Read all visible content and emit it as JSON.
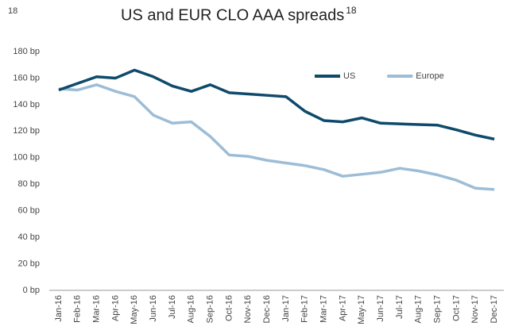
{
  "page_number": "18",
  "chart_data": {
    "type": "line",
    "title": "US and EUR CLO AAA spreads",
    "title_superscript": "18",
    "categories": [
      "Jan-16",
      "Feb-16",
      "Mar-16",
      "Apr-16",
      "May-16",
      "Jun-16",
      "Jul-16",
      "Aug-16",
      "Sep-16",
      "Oct-16",
      "Nov-16",
      "Dec-16",
      "Jan-17",
      "Feb-17",
      "Mar-17",
      "Apr-17",
      "May-17",
      "Jun-17",
      "Jul-17",
      "Aug-17",
      "Sep-17",
      "Oct-17",
      "Nov-17",
      "Dec-17"
    ],
    "series": [
      {
        "name": "US",
        "color": "#0e4a6b",
        "values": [
          151,
          156,
          161,
          160,
          166,
          161,
          154,
          150,
          155,
          149,
          148,
          147,
          146,
          135,
          128,
          127,
          130,
          126,
          125.5,
          125,
          124.5,
          121,
          117,
          114
        ]
      },
      {
        "name": "Europe",
        "color": "#9dbdd6",
        "values": [
          152,
          151,
          155,
          150,
          146,
          132,
          126,
          127,
          116,
          102,
          101,
          98,
          96,
          94,
          91,
          86,
          87.5,
          89,
          92,
          90,
          87,
          83,
          77,
          76
        ]
      }
    ],
    "ylim": [
      0,
      180
    ],
    "yticks": [
      {
        "value": 0,
        "label": "0 bp"
      },
      {
        "value": 20,
        "label": "20 bp"
      },
      {
        "value": 40,
        "label": "40 bp"
      },
      {
        "value": 60,
        "label": "60 bp"
      },
      {
        "value": 80,
        "label": "80 bp"
      },
      {
        "value": 100,
        "label": "100 bp"
      },
      {
        "value": 120,
        "label": "120 bp"
      },
      {
        "value": 140,
        "label": "140 bp"
      },
      {
        "value": 160,
        "label": "160 bp"
      },
      {
        "value": 180,
        "label": "180 bp"
      }
    ],
    "grid": false,
    "legend": "top-right"
  }
}
